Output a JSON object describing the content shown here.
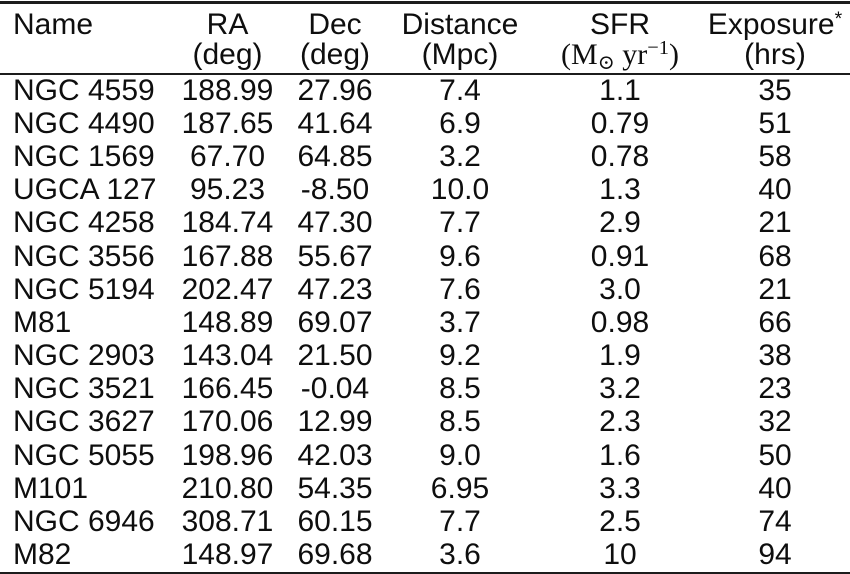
{
  "page": {
    "background": "#ffffff",
    "text_color": "#0e0e0e",
    "rule_color": "#1c1c1c",
    "rule_light_color": "#8f8f8f"
  },
  "table": {
    "header": {
      "name": "Name",
      "ra": "RA",
      "ra_unit": "(deg)",
      "dec": "Dec",
      "dec_unit": "(deg)",
      "distance": "Distance",
      "distance_unit": "(Mpc)",
      "sfr": "SFR",
      "sfr_unit": {
        "open": "(M",
        "sub": "⊙",
        "mid": " yr",
        "sup": "−1",
        "close": ")"
      },
      "exposure": "Exposure",
      "exposure_sup": "*",
      "exposure_unit": "(hrs)"
    },
    "columns": [
      "Name",
      "RA (deg)",
      "Dec (deg)",
      "Distance (Mpc)",
      "SFR (M⊙ yr−1)",
      "Exposure* (hrs)"
    ],
    "rows": [
      [
        "NGC 4559",
        "188.99",
        "27.96",
        "7.4",
        "1.1",
        "35"
      ],
      [
        "NGC 4490",
        "187.65",
        "41.64",
        "6.9",
        "0.79",
        "51"
      ],
      [
        "NGC 1569",
        "67.70",
        "64.85",
        "3.2",
        "0.78",
        "58"
      ],
      [
        "UGCA 127",
        "95.23",
        "-8.50",
        "10.0",
        "1.3",
        "40"
      ],
      [
        "NGC 4258",
        "184.74",
        "47.30",
        "7.7",
        "2.9",
        "21"
      ],
      [
        "NGC 3556",
        "167.88",
        "55.67",
        "9.6",
        "0.91",
        "68"
      ],
      [
        "NGC 5194",
        "202.47",
        "47.23",
        "7.6",
        "3.0",
        "21"
      ],
      [
        "M81",
        "148.89",
        "69.07",
        "3.7",
        "0.98",
        "66"
      ],
      [
        "NGC 2903",
        "143.04",
        "21.50",
        "9.2",
        "1.9",
        "38"
      ],
      [
        "NGC 3521",
        "166.45",
        "-0.04",
        "8.5",
        "3.2",
        "23"
      ],
      [
        "NGC 3627",
        "170.06",
        "12.99",
        "8.5",
        "2.3",
        "32"
      ],
      [
        "NGC 5055",
        "198.96",
        "42.03",
        "9.0",
        "1.6",
        "50"
      ],
      [
        "M101",
        "210.80",
        "54.35",
        "6.95",
        "3.3",
        "40"
      ],
      [
        "NGC 6946",
        "308.71",
        "60.15",
        "7.7",
        "2.5",
        "74"
      ],
      [
        "M82",
        "148.97",
        "69.68",
        "3.6",
        "10",
        "94"
      ]
    ]
  }
}
